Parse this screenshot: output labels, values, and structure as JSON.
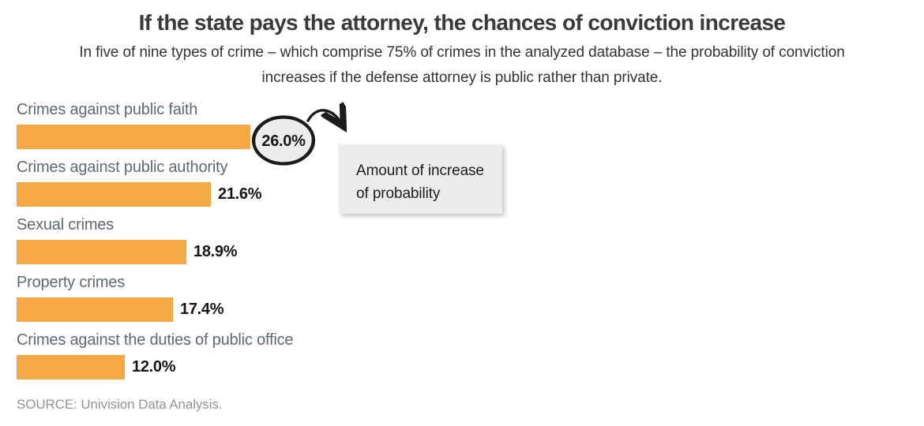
{
  "header": {
    "title": "If the state pays the attorney, the chances of conviction increase",
    "subtitle_lines": [
      "In five of nine types of crime – which comprise 75% of crimes in the analyzed database – the probability of conviction",
      "increases if the defense attorney is public rather than private."
    ]
  },
  "chart_data": {
    "type": "bar",
    "orientation": "horizontal",
    "title": "If the state pays the attorney, the chances of conviction increase",
    "xlabel": "",
    "ylabel": "",
    "categories": [
      "Crimes against public faith",
      "Crimes against public authority",
      "Sexual crimes",
      "Property crimes",
      "Crimes against the duties of public office"
    ],
    "values": [
      26.0,
      21.6,
      18.9,
      17.4,
      12.0
    ],
    "value_labels": [
      "26.0%",
      "21.6%",
      "18.9%",
      "17.4%",
      "12.0%"
    ],
    "value_suffix": "%",
    "xlim": [
      0,
      26
    ],
    "grid": "off",
    "legend": "none",
    "bar_color": "#F6A844",
    "first_value_shown_in_circle_callout": true
  },
  "annotation": {
    "circled_value": "26.0%",
    "box_lines": [
      "Amount of increase",
      "of probability"
    ]
  },
  "footer": {
    "source": "SOURCE: Univision Data Analysis."
  },
  "colors": {
    "bar": "#F6A844",
    "category_label": "#5D6974",
    "title": "#3A3A3A",
    "value_label": "#161616",
    "annotation_box_bg": "#ECECEC",
    "annotation_ink": "#1B1B1B",
    "source": "#8F949B",
    "background": "#FFFFFF"
  }
}
